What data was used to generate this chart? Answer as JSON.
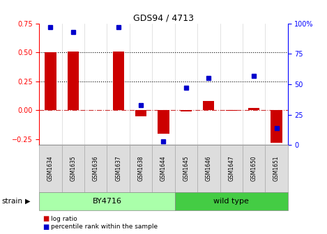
{
  "title": "GDS94 / 4713",
  "samples": [
    "GSM1634",
    "GSM1635",
    "GSM1636",
    "GSM1637",
    "GSM1638",
    "GSM1644",
    "GSM1645",
    "GSM1646",
    "GSM1647",
    "GSM1650",
    "GSM1651"
  ],
  "log_ratio": [
    0.5,
    0.51,
    0.0,
    0.51,
    -0.05,
    -0.2,
    -0.01,
    0.08,
    -0.005,
    0.02,
    -0.28
  ],
  "percentile_rank": [
    97,
    93,
    null,
    97,
    33,
    3,
    47,
    55,
    null,
    57,
    14
  ],
  "ylim_left": [
    -0.3,
    0.75
  ],
  "ylim_right": [
    0,
    100
  ],
  "yticks_left": [
    -0.25,
    0.0,
    0.25,
    0.5,
    0.75
  ],
  "yticks_right": [
    0,
    25,
    50,
    75,
    100
  ],
  "hlines": [
    0.25,
    0.5
  ],
  "bar_color": "#cc0000",
  "dot_color": "#0000cc",
  "group1_label": "BY4716",
  "group1_color": "#aaffaa",
  "group2_label": "wild type",
  "group2_color": "#44cc44",
  "group1_count": 6,
  "group2_count": 5,
  "strain_label": "strain",
  "legend_log_ratio": "log ratio",
  "legend_percentile": "percentile rank within the sample",
  "bar_width": 0.5,
  "bg_color": "#ffffff",
  "tick_cell_color": "#dddddd",
  "tick_cell_edge": "#aaaaaa"
}
